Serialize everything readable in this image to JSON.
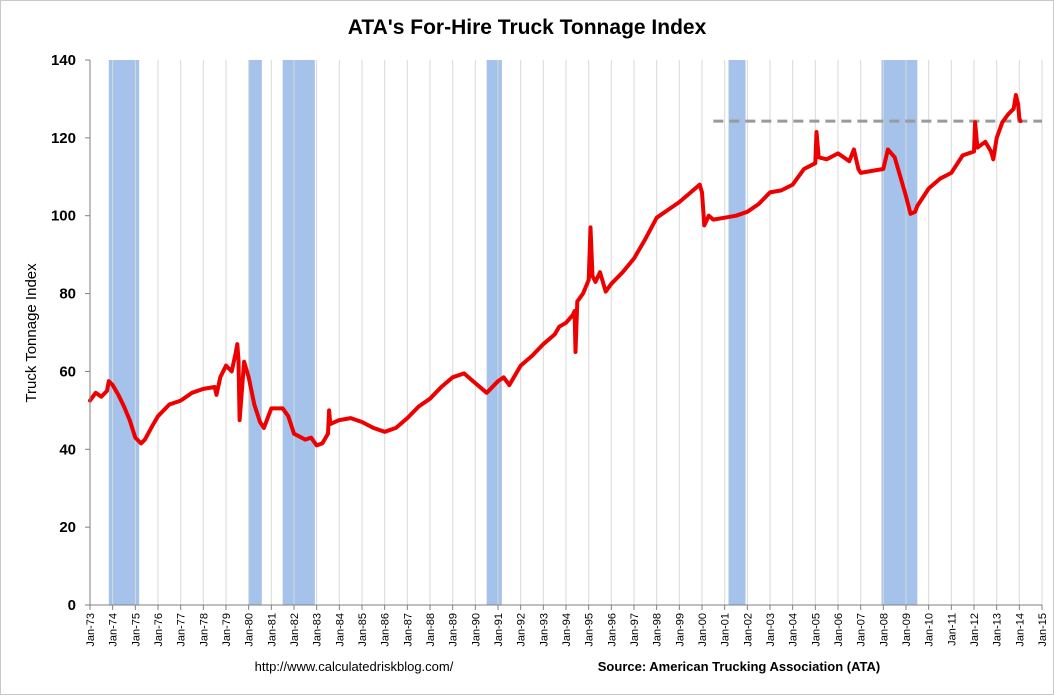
{
  "chart_data": {
    "type": "line",
    "title": "ATA's For-Hire Truck Tonnage Index",
    "ylabel": "Truck Tonnage Index",
    "xlabel": "",
    "ylim": [
      0,
      140
    ],
    "yticks": [
      0,
      20,
      40,
      60,
      80,
      100,
      120,
      140
    ],
    "xlim": [
      1973.0,
      2015.0
    ],
    "xtick_labels": [
      "Jan-73",
      "Jan-74",
      "Jan-75",
      "Jan-76",
      "Jan-77",
      "Jan-78",
      "Jan-79",
      "Jan-80",
      "Jan-81",
      "Jan-82",
      "Jan-83",
      "Jan-84",
      "Jan-85",
      "Jan-86",
      "Jan-87",
      "Jan-88",
      "Jan-89",
      "Jan-90",
      "Jan-91",
      "Jan-92",
      "Jan-93",
      "Jan-94",
      "Jan-95",
      "Jan-96",
      "Jan-97",
      "Jan-98",
      "Jan-99",
      "Jan-00",
      "Jan-01",
      "Jan-02",
      "Jan-03",
      "Jan-04",
      "Jan-05",
      "Jan-06",
      "Jan-07",
      "Jan-08",
      "Jan-09",
      "Jan-10",
      "Jan-11",
      "Jan-12",
      "Jan-13",
      "Jan-14",
      "Jan-15"
    ],
    "grid": "vertical",
    "colors": {
      "line": "#ee0000",
      "recession": "#a4c2ea",
      "reference": "#9a9a9a",
      "grid": "#d9d9d9"
    },
    "recessions": [
      {
        "start": 1973.83,
        "end": 1975.17
      },
      {
        "start": 1980.0,
        "end": 1980.58
      },
      {
        "start": 1981.5,
        "end": 1982.92
      },
      {
        "start": 1990.5,
        "end": 1991.17
      },
      {
        "start": 2001.17,
        "end": 2001.92
      },
      {
        "start": 2007.92,
        "end": 2009.5
      }
    ],
    "reference_line": {
      "value": 124.3,
      "x_start": 2000.5,
      "x_end": 2015.0,
      "style": "dashed"
    },
    "series": [
      {
        "x": [
          1973.0,
          1973.25,
          1973.5,
          1973.75,
          1973.83,
          1974.0,
          1974.25,
          1974.5,
          1974.75,
          1975.0,
          1975.25,
          1975.42,
          1975.75,
          1976.0,
          1976.5,
          1977.0,
          1977.5,
          1978.0,
          1978.5,
          1978.58,
          1978.75,
          1979.0,
          1979.25,
          1979.42,
          1979.5,
          1979.55,
          1979.6,
          1979.8,
          1980.0,
          1980.25,
          1980.5,
          1980.67,
          1981.0,
          1981.5,
          1981.75,
          1982.0,
          1982.5,
          1982.75,
          1983.0,
          1983.25,
          1983.5,
          1983.55,
          1983.6,
          1984.0,
          1984.5,
          1985.0,
          1985.5,
          1986.0,
          1986.5,
          1987.0,
          1987.5,
          1988.0,
          1988.5,
          1989.0,
          1989.5,
          1990.0,
          1990.5,
          1991.0,
          1991.25,
          1991.5,
          1992.0,
          1992.5,
          1993.0,
          1993.5,
          1993.7,
          1994.0,
          1994.3,
          1994.38,
          1994.42,
          1994.5,
          1994.75,
          1995.0,
          1995.08,
          1995.17,
          1995.3,
          1995.5,
          1995.75,
          1996.0,
          1996.5,
          1997.0,
          1997.5,
          1998.0,
          1998.5,
          1999.0,
          1999.5,
          1999.9,
          2000.0,
          2000.1,
          2000.3,
          2000.5,
          2001.0,
          2001.5,
          2002.0,
          2002.5,
          2003.0,
          2003.5,
          2004.0,
          2004.5,
          2005.0,
          2005.05,
          2005.15,
          2005.5,
          2006.0,
          2006.5,
          2006.7,
          2006.9,
          2007.0,
          2007.5,
          2008.0,
          2008.2,
          2008.5,
          2008.8,
          2009.0,
          2009.2,
          2009.4,
          2009.5,
          2010.0,
          2010.5,
          2011.0,
          2011.5,
          2012.0,
          2012.05,
          2012.15,
          2012.5,
          2012.75,
          2012.85,
          2013.0,
          2013.25,
          2013.5,
          2013.75,
          2013.85,
          2013.95,
          2014.0,
          2014.05
        ],
        "values": [
          52.5,
          54.5,
          53.5,
          55.0,
          57.5,
          56.5,
          54.0,
          51.0,
          47.5,
          43.0,
          41.5,
          42.5,
          46.0,
          48.5,
          51.5,
          52.5,
          54.5,
          55.5,
          56.0,
          54.0,
          58.5,
          61.5,
          60.0,
          64.5,
          67.0,
          63.0,
          47.5,
          62.5,
          58.5,
          51.5,
          47.0,
          45.5,
          50.5,
          50.5,
          48.5,
          44.0,
          42.5,
          43.0,
          41.0,
          41.5,
          44.0,
          50.0,
          46.5,
          47.5,
          48.0,
          47.0,
          45.5,
          44.5,
          45.5,
          48.0,
          51.0,
          53.0,
          56.0,
          58.5,
          59.5,
          57.0,
          54.5,
          57.5,
          58.5,
          56.5,
          61.5,
          64.0,
          67.0,
          69.5,
          71.5,
          72.5,
          74.5,
          75.5,
          65.0,
          78.0,
          80.0,
          83.5,
          97.0,
          84.5,
          83.0,
          85.5,
          80.5,
          82.5,
          85.5,
          89.0,
          94.0,
          99.5,
          101.5,
          103.5,
          106.0,
          108.0,
          106.0,
          97.5,
          100.0,
          99.0,
          99.5,
          100.0,
          101.0,
          103.0,
          106.0,
          106.5,
          108.0,
          112.0,
          113.5,
          121.5,
          115.0,
          114.5,
          116.0,
          114.0,
          117.0,
          112.0,
          111.0,
          111.5,
          112.0,
          117.0,
          115.0,
          109.0,
          105.0,
          100.5,
          101.0,
          102.5,
          107.0,
          109.5,
          111.0,
          115.5,
          116.5,
          124.0,
          117.5,
          119.0,
          116.5,
          114.5,
          120.0,
          124.0,
          126.0,
          127.5,
          131.0,
          128.5,
          125.0,
          124.3
        ]
      }
    ]
  },
  "footer": {
    "url": "http://www.calculatedriskblog.com/",
    "source": "Source: American Trucking Association (ATA)"
  }
}
